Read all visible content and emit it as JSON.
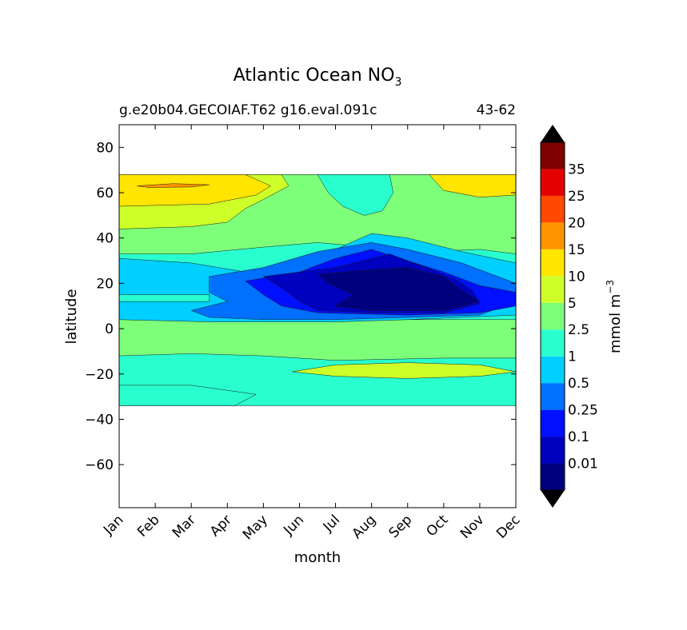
{
  "chart_data": {
    "type": "contour",
    "title": "Atlantic Ocean NO",
    "title_subscript": "3",
    "subtitle_left": "g.e20b04.GECOIAF.T62 g16.eval.091c",
    "subtitle_right": "43-62",
    "xlabel": "month",
    "ylabel": "latitude",
    "x_categories": [
      "Jan",
      "Feb",
      "Mar",
      "Apr",
      "May",
      "Jun",
      "Jul",
      "Aug",
      "Sep",
      "Oct",
      "Nov",
      "Dec"
    ],
    "ylim": [
      -79,
      90
    ],
    "y_ticks": [
      80,
      60,
      40,
      20,
      0,
      -20,
      -40,
      -60
    ],
    "y_tick_labels": [
      "80",
      "60",
      "40",
      "20",
      "0",
      "−20",
      "−40",
      "−60"
    ],
    "data_lat_range": [
      -34,
      68
    ],
    "colorbar": {
      "label": "mmol m",
      "label_exponent": "−3",
      "levels": [
        "0.01",
        "0.1",
        "0.25",
        "0.5",
        "1",
        "2.5",
        "5",
        "10",
        "15",
        "20",
        "25",
        "35"
      ],
      "colors": [
        "#00007f",
        "#0000bf",
        "#0010ff",
        "#0070ff",
        "#00d0ff",
        "#29ffce",
        "#7dff7a",
        "#ceff29",
        "#ffe500",
        "#ff9400",
        "#ff4800",
        "#e50000",
        "#7f0000"
      ],
      "extend": "both"
    },
    "regions": [
      {
        "level_index": 5,
        "description": "background 1-2.5"
      },
      {
        "level_index": 6,
        "description": "tropical/subtropical south band 2.5-5"
      },
      {
        "level_index": 5,
        "description": "southern band near -28"
      },
      {
        "level_index": 7,
        "description": "southern subtropical max 5-10 near -20"
      },
      {
        "level_index": 6,
        "description": "northern band 2.5-5"
      },
      {
        "level_index": 7,
        "description": "north 5-10"
      },
      {
        "level_index": 8,
        "description": "north-west 10-15"
      },
      {
        "level_index": 9,
        "description": "small 15-20 near 63N Feb"
      },
      {
        "level_index": 8,
        "description": "north-east 10-15 Nov-Dec"
      },
      {
        "level_index": 5,
        "description": "subtropical north 1-2.5 near 50N Jul-Sep"
      },
      {
        "level_index": 4,
        "description": "0.5-1 band"
      },
      {
        "level_index": 3,
        "description": "0.25-0.5"
      },
      {
        "level_index": 2,
        "description": "0.1-0.25"
      },
      {
        "level_index": 1,
        "description": "0.01-0.1 core Jul-Oct"
      }
    ]
  }
}
